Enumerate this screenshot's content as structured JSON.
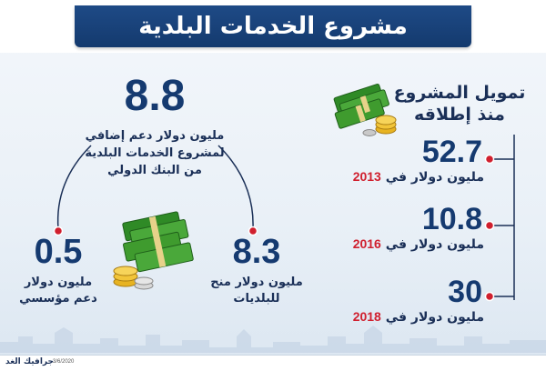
{
  "header": {
    "title": "مشروع الخدمات البلدية"
  },
  "funding": {
    "heading_line1": "تمويل المشروع",
    "heading_line2": "منذ إطلاقه",
    "items": [
      {
        "value": "52.7",
        "label": "مليون دولار في",
        "year": "2013"
      },
      {
        "value": "10.8",
        "label": "مليون دولار في",
        "year": "2016"
      },
      {
        "value": "30",
        "label": "مليون دولار في",
        "year": "2018"
      }
    ]
  },
  "world_bank": {
    "value": "8.8",
    "line1": "مليون دولار دعم إضافي",
    "line2": "لمشروع الخدمات البلدية",
    "line3": "من البنك الدولي"
  },
  "municipalities": {
    "value": "8.3",
    "line1": "مليون دولار منح",
    "line2": "للبلديات"
  },
  "institutional": {
    "value": "0.5",
    "line1": "مليون دولار",
    "line2": "دعم مؤسسي"
  },
  "footer": {
    "credit": "جرافيك الغد",
    "date": "3/6/2020"
  },
  "colors": {
    "navy": "#153a70",
    "accent_red": "#d01f2e",
    "money_green": "#3f9b2e",
    "coin_gold": "#e7b321"
  }
}
